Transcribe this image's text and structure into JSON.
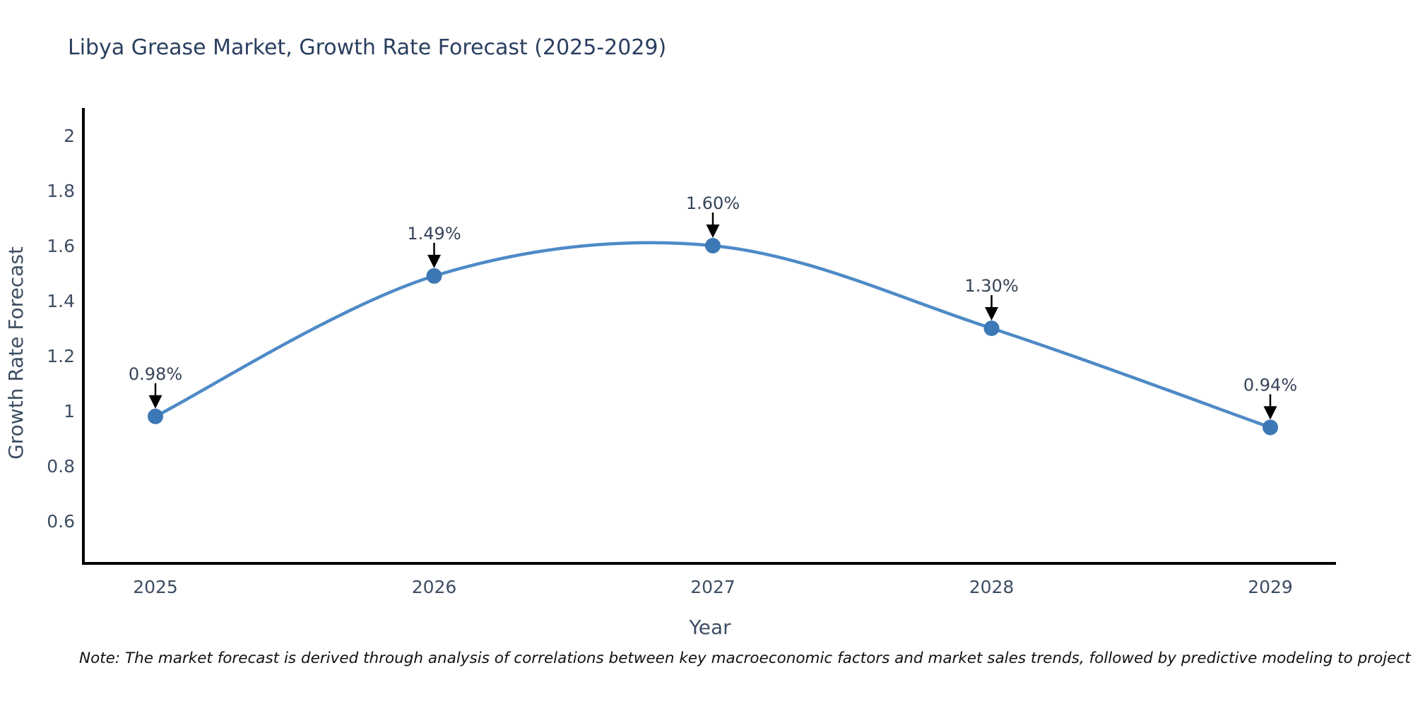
{
  "chart_data": {
    "type": "line",
    "title": "Libya Grease Market, Growth Rate Forecast (2025-2029)",
    "xlabel": "Year",
    "ylabel": "Growth Rate Forecast",
    "categories": [
      "2025",
      "2026",
      "2027",
      "2028",
      "2029"
    ],
    "series": [
      {
        "name": "Growth Rate Forecast",
        "values": [
          0.98,
          1.49,
          1.6,
          1.3,
          0.94
        ]
      }
    ],
    "point_labels": [
      "0.98%",
      "1.49%",
      "1.60%",
      "1.30%",
      "0.94%"
    ],
    "yticks": [
      2,
      1.8,
      1.6,
      1.4,
      1.2,
      1,
      0.8,
      0.6
    ],
    "ylim": [
      0.45,
      2.06
    ],
    "grid": false,
    "legend_position": "none",
    "line_color": "#4e8ac6",
    "marker_color": "#3c78b5",
    "axis_color": "#000000",
    "tick_color": "#3d4e63",
    "annotation_text_color": "#37445a",
    "annotation_arrow_color": "#000000",
    "title_color": "#2a3f5f"
  },
  "footer": {
    "note": "Note: The market forecast is derived through analysis of correlations between key macroeconomic factors and market sales trends, followed by predictive modeling to project future sales"
  }
}
